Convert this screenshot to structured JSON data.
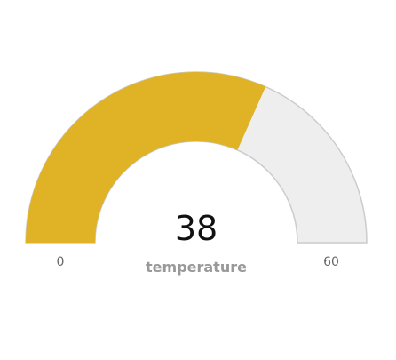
{
  "chart_data": {
    "type": "gauge",
    "value": 38,
    "min": 0,
    "max": 60,
    "label": "temperature",
    "min_label": "0",
    "max_label": "60",
    "value_label": "38",
    "colors": {
      "fill": "#E0B225",
      "track": "#EEEEEE",
      "track_border": "#CCCCCC",
      "value_text": "#111111",
      "label_text": "#999999",
      "tick_text": "#666666"
    }
  }
}
